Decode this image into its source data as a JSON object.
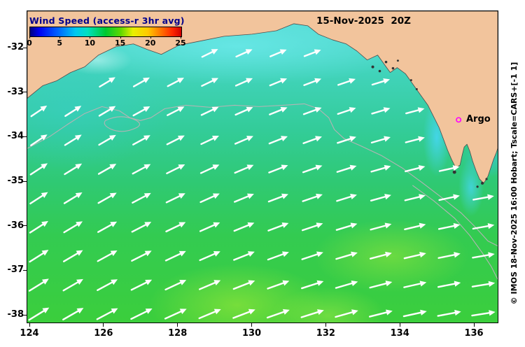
{
  "figure": {
    "title": "Wind Speed (access-r 3hr avg)",
    "datetime_label": "15-Nov-2025  20Z",
    "argo": {
      "label": "Argo"
    },
    "credit_vertical": "© IMOS 18-Nov-2025 16:00 Hobart; Tscale=CARS+[-1 1]",
    "colorbar": {
      "tick_labels": [
        "0",
        "5",
        "10",
        "15",
        "20",
        "25"
      ],
      "min": 0,
      "max": 25
    },
    "axes": {
      "x_tick_labels": [
        "124",
        "126",
        "128",
        "130",
        "132",
        "134",
        "136"
      ],
      "y_tick_labels": [
        "-32",
        "-33",
        "-34",
        "-35",
        "-36",
        "-37",
        "-38"
      ]
    },
    "colors": {
      "land": "#f2c49c",
      "argo_marker": "#ff00ff",
      "title": "#00008b",
      "arrow": "#ffffff",
      "contour": "#b4b4b4",
      "island": "#333333"
    }
  },
  "chart_data": {
    "type": "heatmap",
    "title": "Wind Speed (access-r 3hr avg)",
    "timestamp": "15-Nov-2025 20Z",
    "x_ticks": [
      124,
      126,
      128,
      130,
      132,
      134,
      136
    ],
    "y_ticks": [
      -32,
      -33,
      -34,
      -35,
      -36,
      -37,
      -38
    ],
    "colorbar_ticks": [
      0,
      5,
      10,
      15,
      20,
      25
    ],
    "colorbar_range": [
      0,
      25
    ],
    "field_summary": "Wind speed over the Great Australian Bight: ~6-9 (cyan/teal) near the northern coastline grading to ~11-14 (green to yellow-green patches) in the south; white arrows show wind blowing toward the east-northeast, turning more easterly toward the southeast corner",
    "overlay_markers": [
      {
        "name": "Argo",
        "approx_lon": 135.6,
        "approx_lat": -33.45
      }
    ],
    "legend_position": "top-left inside plot",
    "grid": false
  }
}
